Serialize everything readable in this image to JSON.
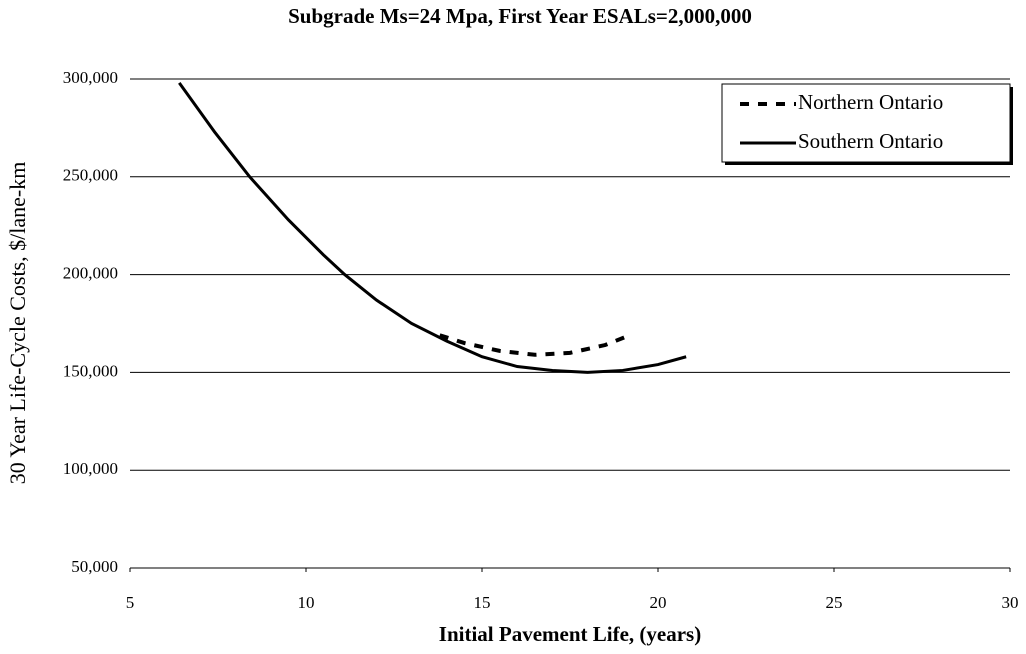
{
  "chart_data": {
    "type": "line",
    "title": "Subgrade Ms=24 Mpa, First Year ESALs=2,000,000",
    "x_label": "Initial Pavement Life, (years)",
    "y_label": "30 Year Life-Cycle Costs, $/lane-km",
    "series": [
      {
        "name": "Northern Ontario",
        "color": "#000000",
        "dash": true,
        "x": [
          13.8,
          14.5,
          15.5,
          16.5,
          17.5,
          18.5,
          19.2
        ],
        "values": [
          169000,
          165000,
          161000,
          159000,
          160000,
          164000,
          169000
        ]
      },
      {
        "name": "Southern Ontario",
        "color": "#000000",
        "dash": false,
        "x": [
          6.4,
          7.4,
          8.4,
          9.5,
          10.5,
          11.1,
          12,
          13,
          14,
          15,
          16,
          17,
          18,
          19,
          20,
          20.8
        ],
        "values": [
          298000,
          273000,
          250000,
          228000,
          210000,
          200000,
          187000,
          175000,
          166000,
          158000,
          153000,
          151000,
          150000,
          151000,
          154000,
          158000
        ]
      }
    ],
    "xlim": [
      5,
      30
    ],
    "xticks": [
      5,
      10,
      15,
      20,
      25,
      30
    ],
    "ylim": [
      50000,
      300000
    ],
    "yticks": [
      {
        "value": 50000,
        "label": "50,000"
      },
      {
        "value": 100000,
        "label": "100,000"
      },
      {
        "value": 150000,
        "label": "150,000"
      },
      {
        "value": 200000,
        "label": "200,000"
      },
      {
        "value": 250000,
        "label": "250,000"
      },
      {
        "value": 300000,
        "label": "300,000"
      }
    ],
    "grid": true,
    "legend": "top-right"
  }
}
